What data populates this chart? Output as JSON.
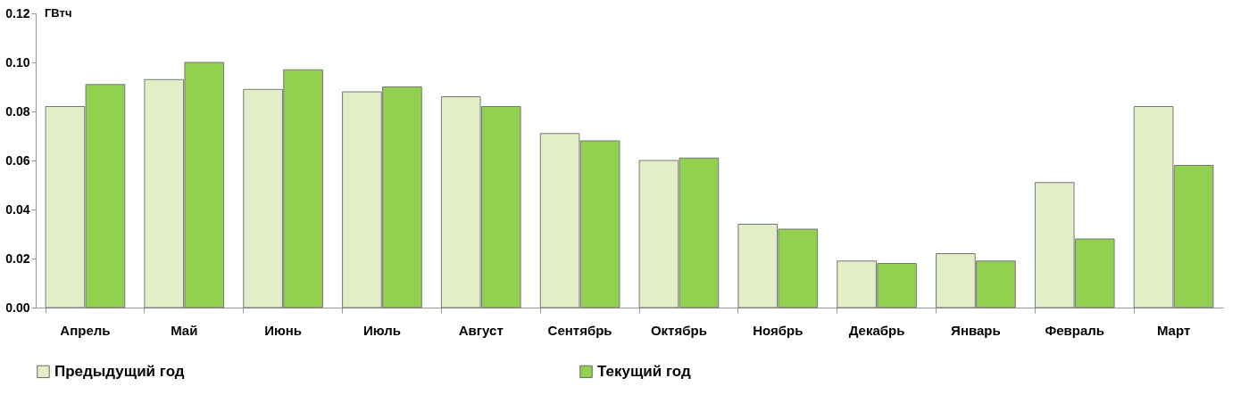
{
  "chart_data": {
    "type": "bar",
    "ylabel": "ГВтч",
    "categories": [
      "Апрель",
      "Май",
      "Июнь",
      "Июль",
      "Август",
      "Сентябрь",
      "Октябрь",
      "Ноябрь",
      "Декабрь",
      "Январь",
      "Февраль",
      "Март"
    ],
    "series": [
      {
        "name": "Предыдущий год",
        "color": "#e2efc6",
        "values": [
          0.082,
          0.093,
          0.089,
          0.088,
          0.086,
          0.071,
          0.06,
          0.034,
          0.019,
          0.022,
          0.051,
          0.082
        ]
      },
      {
        "name": "Текущий год",
        "color": "#92d050",
        "values": [
          0.091,
          0.1,
          0.097,
          0.09,
          0.082,
          0.068,
          0.061,
          0.032,
          0.018,
          0.019,
          0.028,
          0.058
        ]
      }
    ],
    "ylim": [
      0,
      0.12
    ],
    "yticks": [
      {
        "value": 0,
        "label": "0.00"
      },
      {
        "value": 0.02,
        "label": "0.02"
      },
      {
        "value": 0.04,
        "label": "0.04"
      },
      {
        "value": 0.06,
        "label": "0.06"
      },
      {
        "value": 0.08,
        "label": "0.08"
      },
      {
        "value": 0.1,
        "label": "0.10"
      },
      {
        "value": 0.12,
        "label": "0.12"
      }
    ],
    "grid": false,
    "legend": "bottom"
  }
}
